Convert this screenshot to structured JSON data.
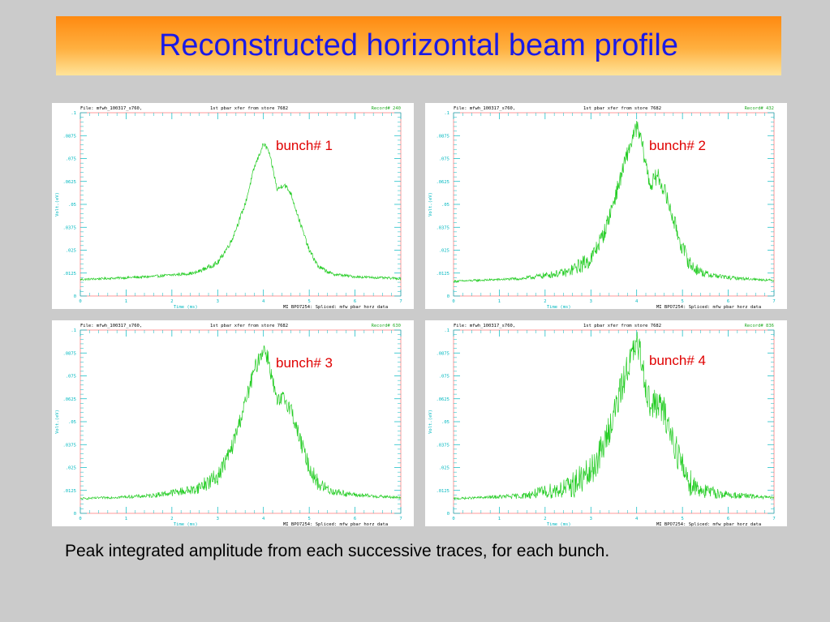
{
  "title": "Reconstructed horizontal beam profile",
  "caption": "Peak integrated amplitude from each successive traces, for each bunch.",
  "colors": {
    "trace": "#22cc22",
    "frame": "#ff8080",
    "axis_text": "#00b8c0",
    "header_text": "#000000",
    "record_text": "#22aa22",
    "bunch_label": "#e00000",
    "title_text": "#1a1ae6"
  },
  "chart_data": [
    {
      "type": "line",
      "panel_label": "bunch# 1",
      "header_file": "File: mfwh_100317_s760,",
      "header_desc": "1st pbar xfer from store 7682",
      "header_record": "Record#  240",
      "xlabel": "Time (ms)",
      "ylabel": "Volt.(eV)",
      "footer_info": "MI BPO7254: Spliced: mfw pbar horz data",
      "x_ticks": [
        "0",
        "1",
        "2",
        "3",
        "4",
        "5",
        "6",
        "7"
      ],
      "y_ticks": [
        "0",
        ".0125",
        ".025",
        ".0375",
        ".05",
        ".0625",
        ".075",
        ".0875",
        ".1"
      ],
      "xlim": [
        0,
        7
      ],
      "ylim": [
        0,
        0.1
      ],
      "baseline": 0.0095,
      "noise": 0.0008,
      "x": [
        0,
        1.5,
        2.5,
        3.0,
        3.3,
        3.6,
        3.8,
        4.0,
        4.1,
        4.2,
        4.3,
        4.45,
        4.6,
        4.8,
        5.0,
        5.2,
        5.5,
        6.0,
        7.0
      ],
      "y": [
        0.009,
        0.0105,
        0.0125,
        0.018,
        0.03,
        0.05,
        0.07,
        0.083,
        0.08,
        0.07,
        0.058,
        0.061,
        0.056,
        0.04,
        0.025,
        0.016,
        0.012,
        0.0105,
        0.0095
      ]
    },
    {
      "type": "line",
      "panel_label": "bunch# 2",
      "header_file": "File: mfwh_100317_s760,",
      "header_desc": "1st pbar xfer from store 7682",
      "header_record": "Record#  432",
      "xlabel": "Time (ms)",
      "ylabel": "Volt.(eV)",
      "footer_info": "MI BPO7254: Spliced: mfw pbar horz data",
      "x_ticks": [
        "0",
        "1",
        "2",
        "3",
        "4",
        "5",
        "6",
        "7"
      ],
      "y_ticks": [
        "0",
        ".0125",
        ".025",
        ".0375",
        ".05",
        ".0625",
        ".075",
        ".0875",
        ".1"
      ],
      "xlim": [
        0,
        7
      ],
      "ylim": [
        0,
        0.1
      ],
      "baseline": 0.009,
      "noise": 0.004,
      "x": [
        0,
        1.5,
        2.5,
        3.0,
        3.3,
        3.6,
        3.8,
        4.0,
        4.1,
        4.2,
        4.3,
        4.45,
        4.6,
        4.8,
        5.0,
        5.2,
        5.5,
        6.0,
        7.0
      ],
      "y": [
        0.008,
        0.0095,
        0.013,
        0.02,
        0.035,
        0.06,
        0.078,
        0.092,
        0.085,
        0.072,
        0.06,
        0.066,
        0.058,
        0.042,
        0.026,
        0.016,
        0.012,
        0.01,
        0.0085
      ]
    },
    {
      "type": "line",
      "panel_label": "bunch# 3",
      "header_file": "File: mfwh_100317_s760,",
      "header_desc": "1st pbar xfer from store 7682",
      "header_record": "Record#  630",
      "xlabel": "Time (ms)",
      "ylabel": "Volt.(eV)",
      "footer_info": "MI BPO7254: Spliced: mfw pbar horz data",
      "x_ticks": [
        "0",
        "1",
        "2",
        "3",
        "4",
        "5",
        "6",
        "7"
      ],
      "y_ticks": [
        "0",
        ".0125",
        ".025",
        ".0375",
        ".05",
        ".0625",
        ".075",
        ".0875",
        ".1"
      ],
      "xlim": [
        0,
        7
      ],
      "ylim": [
        0,
        0.1
      ],
      "baseline": 0.0085,
      "noise": 0.004,
      "x": [
        0,
        1.5,
        2.5,
        3.0,
        3.3,
        3.6,
        3.8,
        4.0,
        4.1,
        4.2,
        4.3,
        4.45,
        4.6,
        4.8,
        5.0,
        5.2,
        5.5,
        6.0,
        7.0
      ],
      "y": [
        0.008,
        0.0095,
        0.013,
        0.02,
        0.035,
        0.06,
        0.078,
        0.09,
        0.085,
        0.072,
        0.06,
        0.063,
        0.057,
        0.04,
        0.025,
        0.016,
        0.012,
        0.01,
        0.0085
      ]
    },
    {
      "type": "line",
      "panel_label": "bunch# 4",
      "header_file": "File: mfwh_100317_s760,",
      "header_desc": "1st pbar xfer from store 7682",
      "header_record": "Record#  836",
      "xlabel": "Time (ms)",
      "ylabel": "Volt.(eV)",
      "footer_info": "MI BPO7254: Spliced: mfw pbar horz data",
      "x_ticks": [
        "0",
        "1",
        "2",
        "3",
        "4",
        "5",
        "6",
        "7"
      ],
      "y_ticks": [
        "0",
        ".0125",
        ".025",
        ".0375",
        ".05",
        ".0625",
        ".075",
        ".0875",
        ".1"
      ],
      "xlim": [
        0,
        7
      ],
      "ylim": [
        0,
        0.1
      ],
      "baseline": 0.0085,
      "noise": 0.008,
      "x": [
        0,
        1.5,
        2.5,
        3.0,
        3.3,
        3.6,
        3.8,
        4.0,
        4.1,
        4.2,
        4.3,
        4.45,
        4.6,
        4.8,
        5.0,
        5.2,
        5.5,
        6.0,
        7.0
      ],
      "y": [
        0.008,
        0.0095,
        0.014,
        0.022,
        0.038,
        0.062,
        0.08,
        0.092,
        0.085,
        0.07,
        0.058,
        0.06,
        0.055,
        0.04,
        0.025,
        0.016,
        0.012,
        0.01,
        0.0085
      ]
    }
  ]
}
